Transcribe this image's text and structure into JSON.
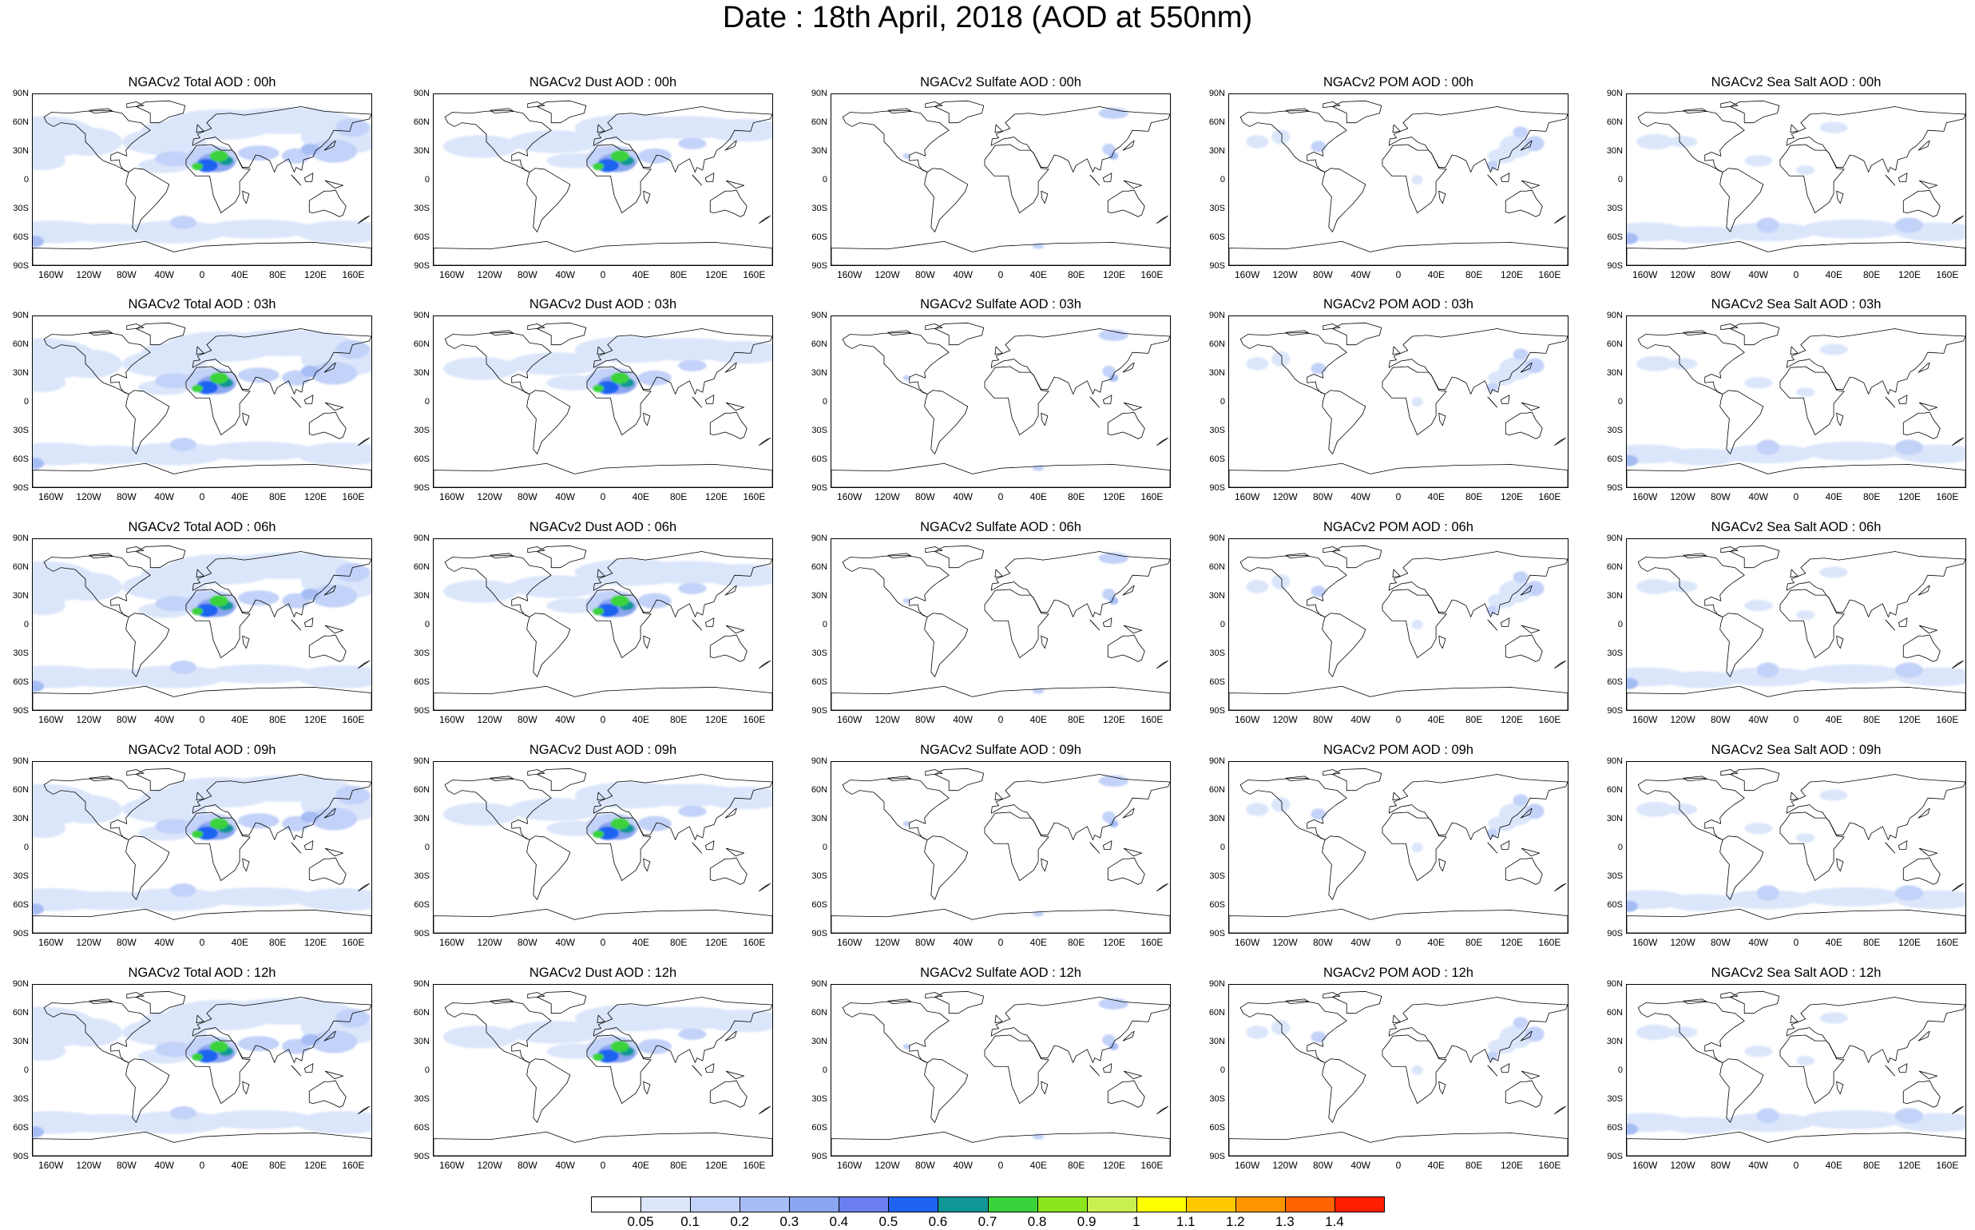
{
  "title": "Date : 18th April, 2018 (AOD at 550nm)",
  "latitude_labels": [
    "90N",
    "60N",
    "30N",
    "0",
    "30S",
    "60S",
    "90S"
  ],
  "longitude_labels": [
    "160W",
    "120W",
    "80W",
    "40W",
    "0",
    "40E",
    "80E",
    "120E",
    "160E"
  ],
  "panels": [
    {
      "title": "NGACv2 Total AOD : 00h",
      "field": "total"
    },
    {
      "title": "NGACv2 Dust AOD : 00h",
      "field": "dust"
    },
    {
      "title": "NGACv2 Sulfate AOD : 00h",
      "field": "sulfate"
    },
    {
      "title": "NGACv2 POM AOD : 00h",
      "field": "pom"
    },
    {
      "title": "NGACv2 Sea Salt AOD : 00h",
      "field": "seasalt"
    },
    {
      "title": "NGACv2 Total AOD : 03h",
      "field": "total"
    },
    {
      "title": "NGACv2 Dust AOD : 03h",
      "field": "dust"
    },
    {
      "title": "NGACv2 Sulfate AOD : 03h",
      "field": "sulfate"
    },
    {
      "title": "NGACv2 POM AOD : 03h",
      "field": "pom"
    },
    {
      "title": "NGACv2 Sea Salt AOD : 03h",
      "field": "seasalt"
    },
    {
      "title": "NGACv2 Total AOD : 06h",
      "field": "total"
    },
    {
      "title": "NGACv2 Dust AOD : 06h",
      "field": "dust"
    },
    {
      "title": "NGACv2 Sulfate AOD : 06h",
      "field": "sulfate"
    },
    {
      "title": "NGACv2 POM AOD : 06h",
      "field": "pom"
    },
    {
      "title": "NGACv2 Sea Salt AOD : 06h",
      "field": "seasalt"
    },
    {
      "title": "NGACv2 Total AOD : 09h",
      "field": "total"
    },
    {
      "title": "NGACv2 Dust AOD : 09h",
      "field": "dust"
    },
    {
      "title": "NGACv2 Sulfate AOD : 09h",
      "field": "sulfate"
    },
    {
      "title": "NGACv2 POM AOD : 09h",
      "field": "pom"
    },
    {
      "title": "NGACv2 Sea Salt  AOD : 09h",
      "field": "seasalt"
    },
    {
      "title": "NGACv2 Total AOD  : 12h",
      "field": "total"
    },
    {
      "title": "NGACv2 Dust AOD : 12h",
      "field": "dust"
    },
    {
      "title": "NGACv2 Sulfate AOD : 12h",
      "field": "sulfate"
    },
    {
      "title": "NGACv2 POM  AOD : 12h",
      "field": "pom"
    },
    {
      "title": "NGACv2 Sea Salt  AOD : 12h",
      "field": "seasalt"
    }
  ],
  "colorbar": {
    "labels": [
      "0.05",
      "0.1",
      "0.2",
      "0.3",
      "0.4",
      "0.5",
      "0.6",
      "0.7",
      "0.8",
      "0.9",
      "1",
      "1.1",
      "1.2",
      "1.3",
      "1.4"
    ],
    "colors": [
      "#ffffff",
      "#dce6fb",
      "#c3d2f8",
      "#a6bdf4",
      "#8aa6f1",
      "#6b7ff0",
      "#1e64f0",
      "#0f9696",
      "#3ad23a",
      "#8ce61e",
      "#c8f050",
      "#ffff00",
      "#ffc800",
      "#ff9600",
      "#ff6400",
      "#ff1e00"
    ]
  }
}
